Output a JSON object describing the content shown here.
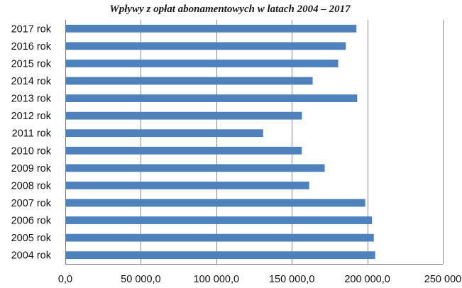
{
  "chart_data": {
    "type": "bar",
    "orientation": "horizontal",
    "title": "Wpływy z opłat abonamentowych w latach 2004 – 2017",
    "categories": [
      "2017 rok",
      "2016 rok",
      "2015 rok",
      "2014 rok",
      "2013 rok",
      "2012 rok",
      "2011 rok",
      "2010 rok",
      "2009 rok",
      "2008 rok",
      "2007 rok",
      "2006 rok",
      "2005 rok",
      "2004 rok"
    ],
    "values": [
      192800,
      185800,
      180700,
      163800,
      193300,
      156700,
      131000,
      156600,
      171800,
      161500,
      198600,
      203100,
      204300,
      205200
    ],
    "xlim": [
      0,
      250000
    ],
    "xticks": [
      0,
      50000,
      100000,
      150000,
      200000,
      250000
    ],
    "xtick_labels": [
      "0,0",
      "50 000,0",
      "100 000,0",
      "150 000,0",
      "200 000,0",
      "250 000"
    ],
    "xlabel": "",
    "ylabel": "",
    "grid": true,
    "bar_color": "#4f81bd"
  }
}
